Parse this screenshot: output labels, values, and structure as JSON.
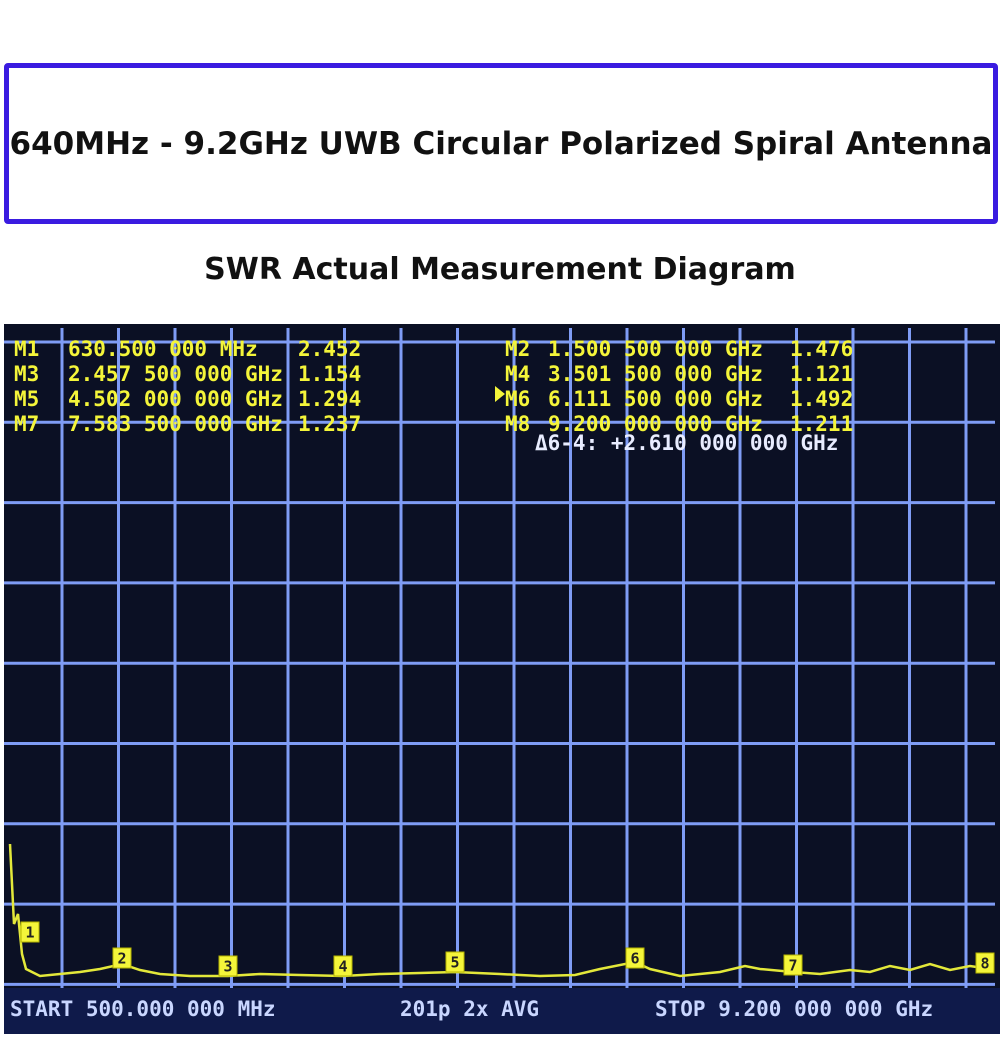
{
  "header": {
    "title": "640MHz - 9.2GHz UWB Circular Polarized Spiral Antenna",
    "subtitle": "SWR Actual Measurement Diagram"
  },
  "screen": {
    "markers_left": [
      {
        "label": "M1",
        "freq": "630.500 000 MHz",
        "swr": "2.452"
      },
      {
        "label": "M3",
        "freq": "2.457 500 000 GHz",
        "swr": "1.154"
      },
      {
        "label": "M5",
        "freq": "4.502 000 000 GHz",
        "swr": "1.294"
      },
      {
        "label": "M7",
        "freq": "7.583 500 000 GHz",
        "swr": "1.237"
      }
    ],
    "markers_right": [
      {
        "label": "M2",
        "freq": "1.500 500 000 GHz",
        "swr": "1.476"
      },
      {
        "label": "M4",
        "freq": "3.501 500 000 GHz",
        "swr": "1.121"
      },
      {
        "label": "M6",
        "freq": "6.111 500 000 GHz",
        "swr": "1.492"
      },
      {
        "label": "M8",
        "freq": "9.200 000 000 GHz",
        "swr": "1.211"
      }
    ],
    "delta": "Δ6-4: +2.610 000 000 GHz",
    "marker_flags": [
      "1",
      "2",
      "3",
      "4",
      "5",
      "6",
      "7",
      "8"
    ],
    "footer": {
      "start": "START 500.000 000 MHz",
      "points": "201p 2x AVG",
      "stop": "STOP 9.200 000 000 GHz"
    }
  }
}
